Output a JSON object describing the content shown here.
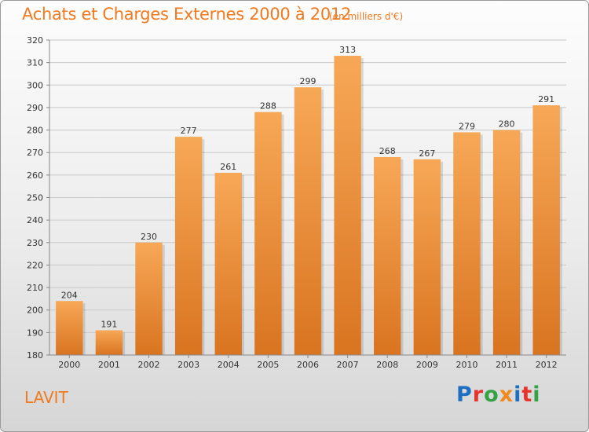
{
  "title": "Achats et Charges Externes 2000 à 2012",
  "subtitle": "(en milliers d'€)",
  "commune": "LAVIT",
  "logo": {
    "text": "Proxiti",
    "letters": [
      {
        "char": "P",
        "color": "#1f6fc0"
      },
      {
        "char": "r",
        "color": "#e8322c"
      },
      {
        "char": "o",
        "color": "#34a245"
      },
      {
        "char": "x",
        "color": "#f08a1c"
      },
      {
        "char": "i",
        "color": "#1f6fc0"
      },
      {
        "char": "t",
        "color": "#e8322c"
      },
      {
        "char": "i",
        "color": "#34a245"
      }
    ]
  },
  "colors": {
    "accent": "#f07a20",
    "bar_top": "#f7a857",
    "bar_bottom": "#d97420",
    "grid": "#c8c8c8",
    "axis_text": "#333333"
  },
  "chart_data": {
    "type": "bar",
    "categories": [
      "2000",
      "2001",
      "2002",
      "2003",
      "2004",
      "2005",
      "2006",
      "2007",
      "2008",
      "2009",
      "2010",
      "2011",
      "2012"
    ],
    "values": [
      204,
      191,
      230,
      277,
      261,
      288,
      299,
      313,
      268,
      267,
      279,
      280,
      291
    ],
    "title": "Achats et Charges Externes 2000 à 2012",
    "subtitle": "(en milliers d'€)",
    "xlabel": "",
    "ylabel": "",
    "ylim": [
      180,
      320
    ],
    "yticks": [
      180,
      190,
      200,
      210,
      220,
      230,
      240,
      250,
      260,
      270,
      280,
      290,
      300,
      310,
      320
    ],
    "grid": true,
    "data_labels": true,
    "legend": "none"
  }
}
